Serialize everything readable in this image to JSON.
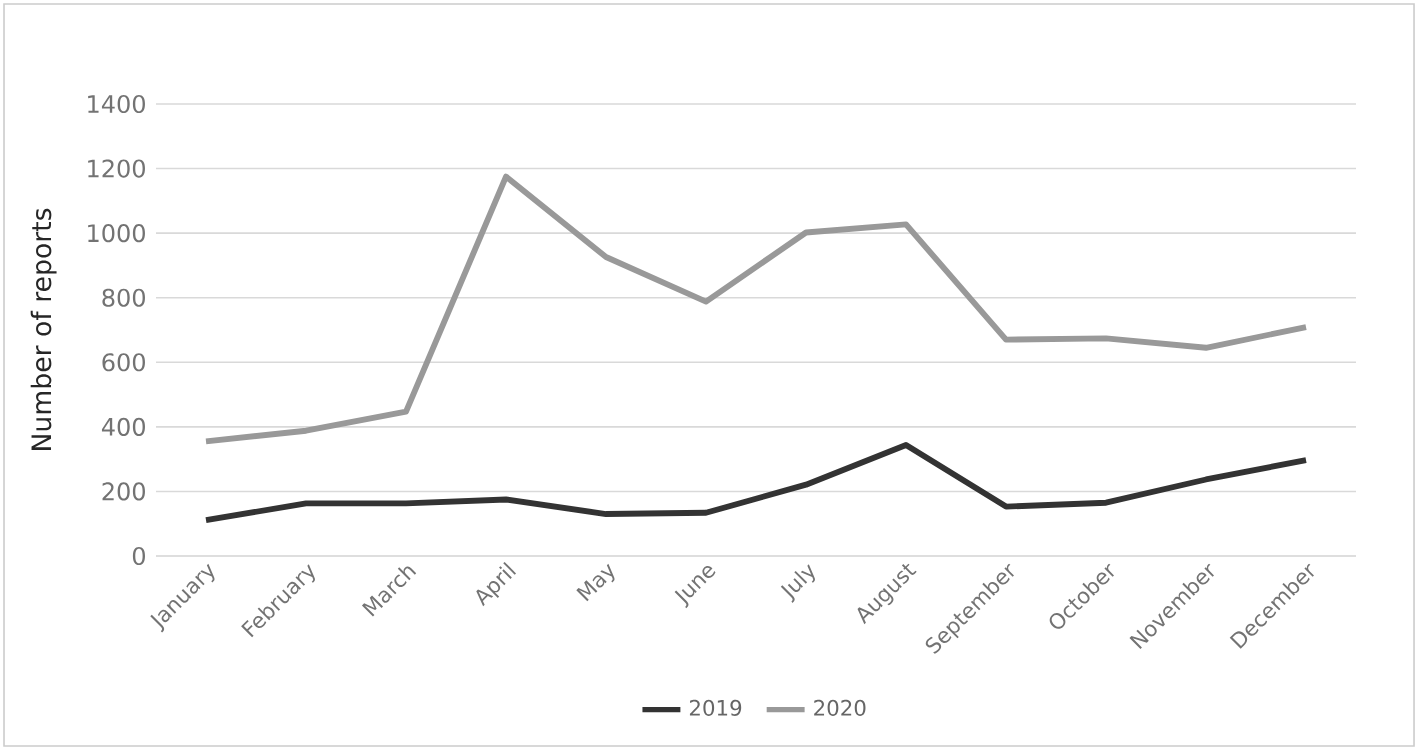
{
  "chart_data": {
    "type": "line",
    "ylabel": "Number of reports",
    "categories": [
      "January",
      "February",
      "March",
      "April",
      "May",
      "June",
      "July",
      "August",
      "September",
      "October",
      "November",
      "December"
    ],
    "series": [
      {
        "name": "2019",
        "color": "#333333",
        "values": [
          111,
          163,
          163,
          175,
          130,
          134,
          221,
          344,
          153,
          165,
          237,
          297
        ]
      },
      {
        "name": "2020",
        "color": "#999999",
        "values": [
          355,
          388,
          447,
          1175,
          926,
          788,
          1002,
          1027,
          670,
          674,
          645,
          709
        ]
      }
    ],
    "ylim": [
      0,
      1400
    ],
    "yticks": [
      0,
      200,
      400,
      600,
      800,
      1000,
      1200,
      1400
    ],
    "grid": "y",
    "legend": "bottom",
    "marker": "none",
    "line_style": "solid"
  }
}
